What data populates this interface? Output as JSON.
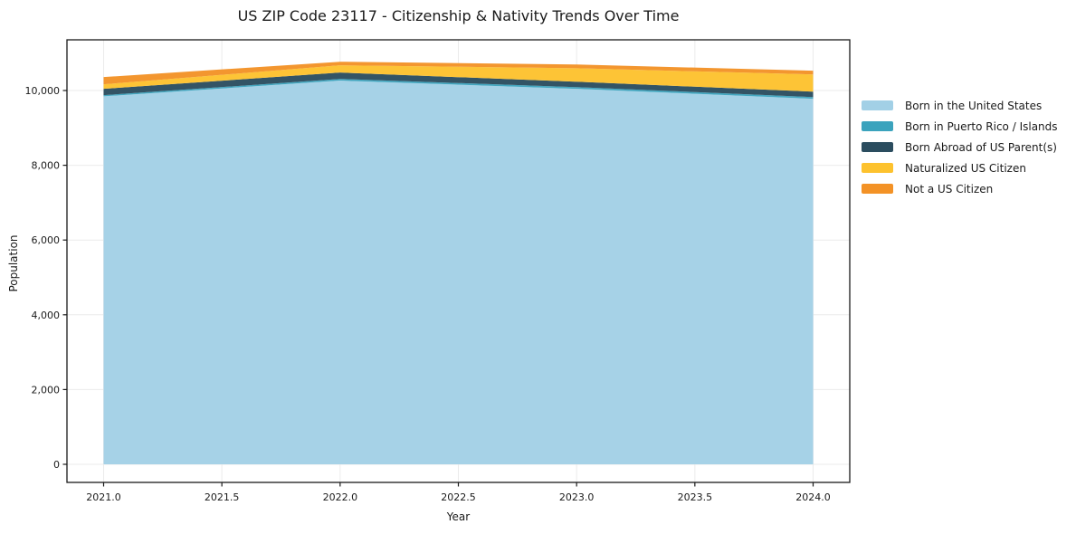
{
  "chart_data": {
    "type": "area",
    "stacked": true,
    "title": "US ZIP Code 23117 - Citizenship & Nativity Trends Over Time",
    "xlabel": "Year",
    "ylabel": "Population",
    "x": [
      2021,
      2022,
      2023,
      2024
    ],
    "series": [
      {
        "name": "Born in the United States",
        "color": "#a2d0e6",
        "values": [
          9845,
          10265,
          10045,
          9780
        ]
      },
      {
        "name": "Born in Puerto Rico / Islands",
        "color": "#3ba3bd",
        "values": [
          30,
          45,
          45,
          45
        ]
      },
      {
        "name": "Born Abroad of US Parent(s)",
        "color": "#2b4d5f",
        "values": [
          170,
          170,
          145,
          145
        ]
      },
      {
        "name": "Naturalized US Citizen",
        "color": "#fdc22e",
        "values": [
          120,
          195,
          360,
          460
        ]
      },
      {
        "name": "Not a US Citizen",
        "color": "#f39226",
        "values": [
          195,
          95,
          100,
          100
        ]
      }
    ],
    "xticks": [
      "2021.0",
      "2021.5",
      "2022.0",
      "2022.5",
      "2023.0",
      "2023.5",
      "2024.0"
    ],
    "xtick_values": [
      2021,
      2021.5,
      2022,
      2022.5,
      2023,
      2023.5,
      2024
    ],
    "yticks": [
      "0",
      "2,000",
      "4,000",
      "6,000",
      "8,000",
      "10,000"
    ],
    "ytick_values": [
      0,
      2000,
      4000,
      6000,
      8000,
      10000
    ],
    "xlim": [
      2020.85,
      2024.15
    ],
    "ylim": [
      -480,
      11350
    ],
    "grid": true,
    "grid_color": "#ebebeb",
    "axis_color": "#1a1a1a",
    "legend_position": "right"
  }
}
